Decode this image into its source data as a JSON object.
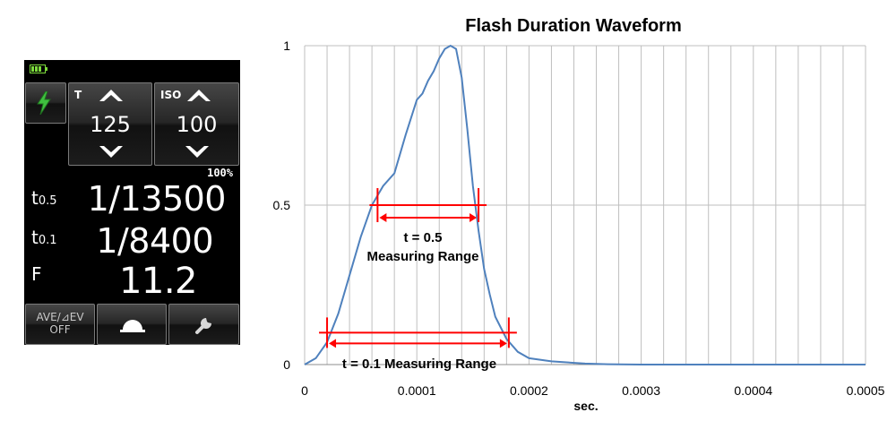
{
  "meter": {
    "shutter_label": "T",
    "shutter_value": "125",
    "iso_label": "ISO",
    "iso_value": "100",
    "percent": "100%",
    "t05_label": "t",
    "t05_sub": "0.5",
    "t05_value": "1/13500",
    "t01_label": "t",
    "t01_sub": "0.1",
    "t01_value": "1/8400",
    "f_label": "F",
    "f_value": "11.2",
    "ave_line1": "AVE/⊿EV",
    "ave_line2": "OFF",
    "icons": [
      "battery-icon",
      "flash-bolt-icon",
      "chevron-up-icon",
      "chevron-down-icon",
      "dome-icon",
      "wrench-icon"
    ],
    "colors": {
      "battery": "#7ddc3c",
      "bolt": "#3fbf3f",
      "background": "#000000"
    }
  },
  "chart": {
    "title": "Flash Duration Waveform",
    "xlabel": "sec.",
    "yticks": [
      "0",
      "0.5",
      "1"
    ],
    "xticks": [
      "0",
      "0.0001",
      "0.0002",
      "0.0003",
      "0.0004",
      "0.0005"
    ],
    "annotation_05_line1": "t = 0.5",
    "annotation_05_line2": "Measuring Range",
    "annotation_01": "t = 0.1 Measuring Range"
  },
  "chart_data": {
    "type": "line",
    "title": "Flash Duration Waveform",
    "xlabel": "sec.",
    "ylabel": "",
    "xlim": [
      0,
      0.0005
    ],
    "ylim": [
      0,
      1
    ],
    "grid": true,
    "line_color": "#4f81bd",
    "annotation_color": "#ff0000",
    "x": [
      0,
      1e-05,
      2e-05,
      3e-05,
      4e-05,
      5e-05,
      6e-05,
      7e-05,
      8e-05,
      9e-05,
      0.0001,
      0.000105,
      0.00011,
      0.000115,
      0.00012,
      0.000125,
      0.00013,
      0.000135,
      0.00014,
      0.000145,
      0.00015,
      0.000155,
      0.00016,
      0.000165,
      0.00017,
      0.00018,
      0.00019,
      0.0002,
      0.00022,
      0.00025,
      0.00027,
      0.0003,
      0.0005
    ],
    "y": [
      0,
      0.02,
      0.07,
      0.16,
      0.28,
      0.4,
      0.5,
      0.56,
      0.6,
      0.72,
      0.83,
      0.85,
      0.89,
      0.92,
      0.96,
      0.99,
      1.0,
      0.99,
      0.9,
      0.74,
      0.56,
      0.42,
      0.3,
      0.22,
      0.15,
      0.08,
      0.04,
      0.02,
      0.01,
      0.003,
      0.001,
      0.0,
      0.0
    ],
    "ranges": [
      {
        "label": "t = 0.5 Measuring Range",
        "level": 0.5,
        "start": 6.5e-05,
        "end": 0.000155
      },
      {
        "label": "t = 0.1 Measuring Range",
        "level": 0.1,
        "start": 2e-05,
        "end": 0.000182
      }
    ]
  }
}
